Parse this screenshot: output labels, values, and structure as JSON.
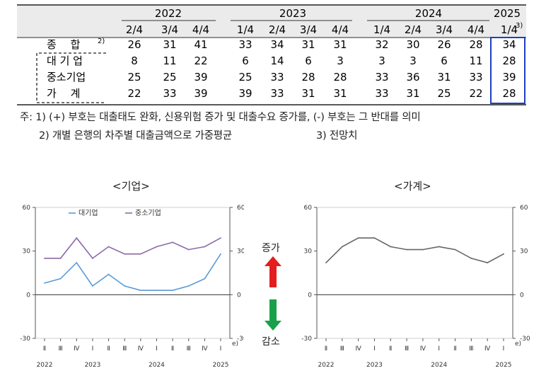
{
  "table": {
    "years": [
      "2022",
      "2023",
      "2024",
      "2025"
    ],
    "quarters": [
      "2/4",
      "3/4",
      "4/4",
      "1/4",
      "2/4",
      "3/4",
      "4/4",
      "1/4",
      "2/4",
      "3/4",
      "4/4",
      "1/4"
    ],
    "forecast_sup": "3)",
    "rows": [
      {
        "label": "종　 합",
        "sup": "2)",
        "values": [
          "26",
          "31",
          "41",
          "33",
          "34",
          "31",
          "31",
          "32",
          "30",
          "26",
          "28",
          "34"
        ]
      },
      {
        "label": "대 기 업",
        "sup": "",
        "values": [
          "8",
          "11",
          "22",
          "6",
          "14",
          "6",
          "3",
          "3",
          "3",
          "6",
          "11",
          "28"
        ]
      },
      {
        "label": "중소기업",
        "sup": "",
        "values": [
          "25",
          "25",
          "39",
          "25",
          "33",
          "28",
          "28",
          "33",
          "36",
          "31",
          "33",
          "39"
        ]
      },
      {
        "label": "가　 계",
        "sup": "",
        "values": [
          "22",
          "33",
          "39",
          "39",
          "33",
          "31",
          "31",
          "33",
          "31",
          "25",
          "22",
          "28"
        ]
      }
    ]
  },
  "notes": {
    "line1": "주: 1) (+) 부호는 대출태도 완화, 신용위험 증가 및 대출수요 증가를, (-) 부호는 그 반대를 의미",
    "line2": "2) 개별 은행의 차주별 대출금액으로 가중평균",
    "line3": "3) 전망치"
  },
  "arrows": {
    "up_label": "증가",
    "down_label": "감소"
  },
  "colors": {
    "large": "#5b9bd5",
    "sme": "#8e6aa8",
    "household": "#666666",
    "highlight": "#1f3fbf",
    "up": "#e41e1e",
    "down": "#1aa04b"
  },
  "chart_data": [
    {
      "type": "line",
      "title": "<기업>",
      "categories": [
        "Ⅱ",
        "Ⅲ",
        "Ⅳ",
        "Ⅰ",
        "Ⅱ",
        "Ⅲ",
        "Ⅳ",
        "Ⅰ",
        "Ⅱ",
        "Ⅲ",
        "Ⅳ",
        "Ⅰ"
      ],
      "year_labels": [
        "2022",
        "2023",
        "2024",
        "2025"
      ],
      "forecast_mark": "e)",
      "ylim": [
        -30,
        60
      ],
      "yticks": [
        "-30",
        "0",
        "30",
        "60"
      ],
      "legend_position": "top-left",
      "series": [
        {
          "name": "대기업",
          "values": [
            8,
            11,
            22,
            6,
            14,
            6,
            3,
            3,
            3,
            6,
            11,
            28
          ]
        },
        {
          "name": "중소기업",
          "values": [
            25,
            25,
            39,
            25,
            33,
            28,
            28,
            33,
            36,
            31,
            33,
            39
          ]
        }
      ]
    },
    {
      "type": "line",
      "title": "<가계>",
      "categories": [
        "Ⅱ",
        "Ⅲ",
        "Ⅳ",
        "Ⅰ",
        "Ⅱ",
        "Ⅲ",
        "Ⅳ",
        "Ⅰ",
        "Ⅱ",
        "Ⅲ",
        "Ⅳ",
        "Ⅰ"
      ],
      "year_labels": [
        "2022",
        "2023",
        "2024",
        "2025"
      ],
      "forecast_mark": "e)",
      "ylim": [
        -30,
        60
      ],
      "yticks": [
        "-30",
        "0",
        "30",
        "60"
      ],
      "series": [
        {
          "values": [
            22,
            33,
            39,
            39,
            33,
            31,
            31,
            33,
            31,
            25,
            22,
            28
          ]
        }
      ]
    }
  ]
}
